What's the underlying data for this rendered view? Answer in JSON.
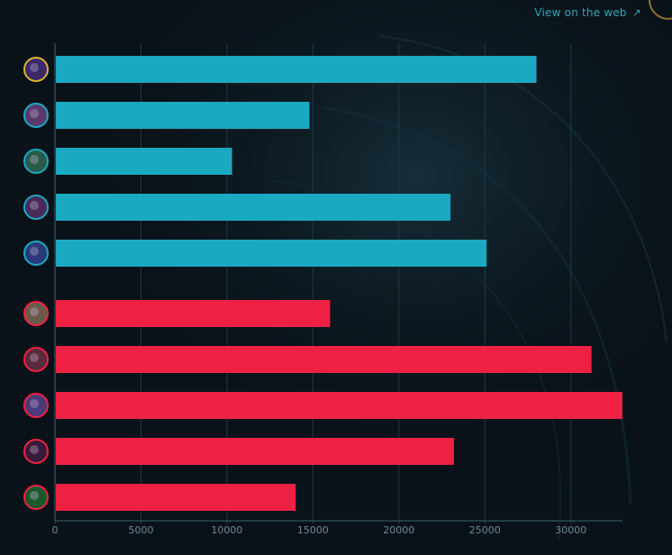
{
  "header": {
    "view_link_label": "View on the web",
    "view_link_icon": "external-link-arrow-icon"
  },
  "colors": {
    "background": "#0a1219",
    "team_blue": "#1ba9c1",
    "team_red": "#ee2145",
    "grid": "#1d3a44",
    "axis": "#2b4a55",
    "tick_text": "#6e8a93",
    "link": "#2fa7b8"
  },
  "chart_data": {
    "type": "bar",
    "orientation": "horizontal",
    "title": "",
    "xlabel": "",
    "ylabel": "",
    "xlim": [
      0,
      33000
    ],
    "xticks": [
      0,
      5000,
      10000,
      15000,
      20000,
      25000,
      30000
    ],
    "grid": "vertical",
    "legend": "none",
    "series": [
      {
        "team": "blue",
        "color": "#1ba9c1",
        "bars": [
          {
            "icon": "champion-portrait-1-icon",
            "value": 28000
          },
          {
            "icon": "champion-portrait-2-icon",
            "value": 14800
          },
          {
            "icon": "champion-portrait-3-icon",
            "value": 10300
          },
          {
            "icon": "champion-portrait-4-icon",
            "value": 23000
          },
          {
            "icon": "champion-portrait-5-icon",
            "value": 25100
          }
        ]
      },
      {
        "team": "red",
        "color": "#ee2145",
        "bars": [
          {
            "icon": "champion-portrait-6-icon",
            "value": 16000
          },
          {
            "icon": "champion-portrait-7-icon",
            "value": 31200
          },
          {
            "icon": "champion-portrait-8-icon",
            "value": 33000
          },
          {
            "icon": "champion-portrait-9-icon",
            "value": 23200
          },
          {
            "icon": "champion-portrait-10-icon",
            "value": 14000
          }
        ]
      }
    ]
  }
}
